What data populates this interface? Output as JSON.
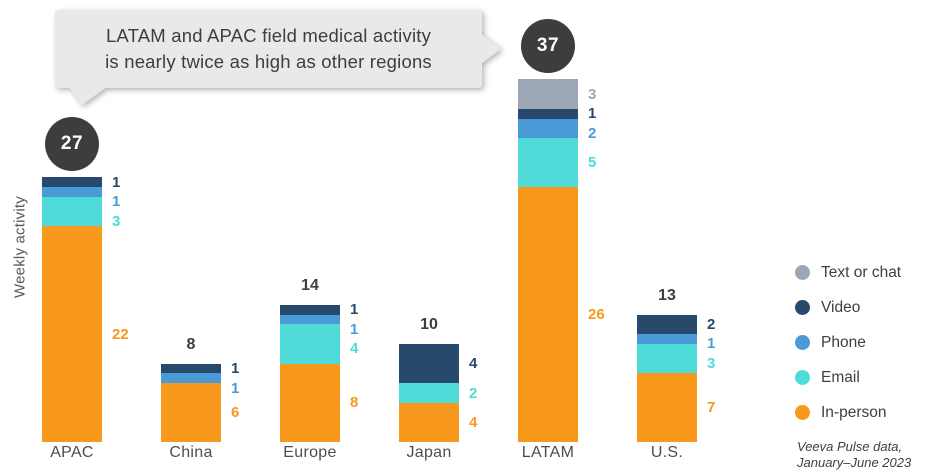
{
  "title_callout": {
    "line1": "LATAM and APAC field medical activity",
    "line2": "is nearly twice as high as other regions"
  },
  "y_axis_label": "Weekly activity",
  "source_note": {
    "line1": "Veeva Pulse data,",
    "line2": "January–June 2023"
  },
  "colors": {
    "in_person": "#F8981D",
    "email": "#4FDCD9",
    "phone": "#4A9AD8",
    "video": "#27496B",
    "text_or_chat": "#9EA7B6",
    "badge_circle": "#3D3D3D",
    "callout_background": "#E9E9E9",
    "dark_text": "#3E3E3E",
    "axis_text": "#4D4D4D"
  },
  "legend": {
    "items": [
      {
        "label": "Text or chat",
        "color": "#9EA7B6"
      },
      {
        "label": "Video",
        "color": "#27496B"
      },
      {
        "label": "Phone",
        "color": "#4A9AD8"
      },
      {
        "label": "Email",
        "color": "#4FDCD9"
      },
      {
        "label": "In-person",
        "color": "#F8981D"
      }
    ]
  },
  "chart_data": {
    "type": "bar",
    "variant": "stacked-vertical",
    "title": "LATAM and APAC field medical activity is nearly twice as high as other regions",
    "ylabel": "Weekly activity",
    "xlabel": "",
    "categories": [
      "APAC",
      "China",
      "Europe",
      "Japan",
      "LATAM",
      "U.S."
    ],
    "series": [
      {
        "name": "In-person",
        "color": "#F8981D",
        "values": [
          22,
          6,
          8,
          4,
          26,
          7
        ]
      },
      {
        "name": "Email",
        "color": "#4FDCD9",
        "values": [
          3,
          0,
          4,
          2,
          5,
          3
        ]
      },
      {
        "name": "Phone",
        "color": "#4A9AD8",
        "values": [
          1,
          1,
          1,
          0,
          2,
          1
        ]
      },
      {
        "name": "Video",
        "color": "#27496B",
        "values": [
          1,
          1,
          1,
          4,
          1,
          2
        ]
      },
      {
        "name": "Text or chat",
        "color": "#9EA7B6",
        "values": [
          0,
          0,
          0,
          0,
          3,
          0
        ]
      }
    ],
    "totals": [
      27,
      8,
      14,
      10,
      37,
      13
    ],
    "highlighted_categories": [
      "APAC",
      "LATAM"
    ],
    "ylim": [
      0,
      37
    ],
    "grid": false,
    "legend_position": "right"
  }
}
